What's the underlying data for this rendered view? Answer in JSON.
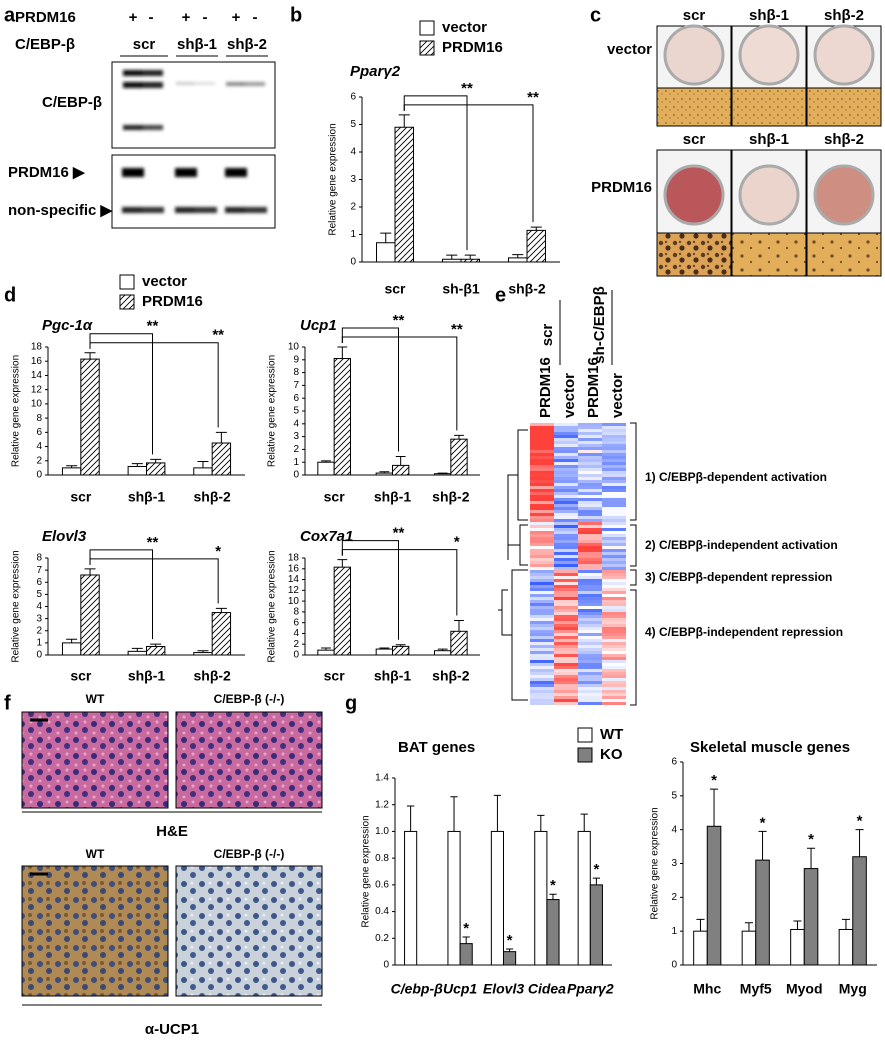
{
  "panel_labels": [
    "a",
    "b",
    "c",
    "d",
    "e",
    "f",
    "g"
  ],
  "blot": {
    "treatment_label": "PRDM16",
    "signs": [
      "+",
      "-",
      "+",
      "-",
      "+",
      "-"
    ],
    "shrna_label": "C/EBP-β",
    "groups": [
      "scr",
      "shβ-1",
      "shβ-2"
    ],
    "rows": [
      "C/EBP-β",
      "PRDM16 ▶",
      "non-specific ▶"
    ]
  },
  "staining": {
    "rows": [
      {
        "label": "vector",
        "columns": [
          "scr",
          "shβ-1",
          "shβ-2"
        ]
      },
      {
        "label": "PRDM16",
        "columns": [
          "scr",
          "shβ-1",
          "shβ-2"
        ]
      }
    ]
  },
  "heatmap": {
    "groups": [
      "scr",
      "sh-C/EBPβ"
    ],
    "columns": [
      "PRDM16",
      "vector",
      "PRDM16",
      "vector"
    ],
    "clusters": [
      "1) C/EBPβ-dependent activation",
      "2) C/EBPβ-independent activation",
      "3) C/EBPβ-dependent repression",
      "4) C/EBPβ-independent repression"
    ]
  },
  "histology": {
    "rows": [
      {
        "columns": [
          "WT",
          "C/EBP-β (-/-)"
        ],
        "stain": "H&E"
      },
      {
        "columns": [
          "WT",
          "C/EBP-β (-/-)"
        ],
        "stain": "α-UCP1"
      }
    ]
  },
  "chart_data": [
    {
      "type": "bar",
      "title": "Pparγ2",
      "ylabel": "Relative gene expression",
      "categories": [
        "scr",
        "sh-β1",
        "shβ-2"
      ],
      "series": [
        {
          "name": "vector",
          "color": "#ffffff",
          "values": [
            0.7,
            0.1,
            0.15
          ],
          "errors": [
            0.35,
            0.15,
            0.12
          ]
        },
        {
          "name": "PRDM16",
          "color": "#ffffff",
          "hatch": true,
          "values": [
            4.9,
            0.1,
            1.15
          ],
          "errors": [
            0.45,
            0.15,
            0.12
          ]
        }
      ],
      "ylim": [
        0,
        6
      ],
      "yticks": [
        0,
        1,
        2,
        3,
        4,
        5,
        6
      ],
      "significance": [
        {
          "from": "scr",
          "to": "sh-β1",
          "text": "**"
        },
        {
          "from": "scr",
          "to": "shβ-2",
          "text": "**"
        }
      ]
    },
    {
      "type": "bar",
      "title": "Pgc-1α",
      "ylabel": "Relative gene expression",
      "categories": [
        "scr",
        "shβ-1",
        "shβ-2"
      ],
      "series": [
        {
          "name": "vector",
          "color": "#ffffff",
          "values": [
            1.0,
            1.2,
            1.0
          ],
          "errors": [
            0.3,
            0.4,
            0.9
          ]
        },
        {
          "name": "PRDM16",
          "color": "#ffffff",
          "hatch": true,
          "values": [
            16.3,
            1.7,
            4.5
          ],
          "errors": [
            0.9,
            0.5,
            1.5
          ]
        }
      ],
      "ylim": [
        0,
        18
      ],
      "yticks": [
        0,
        2,
        4,
        6,
        8,
        10,
        12,
        14,
        16,
        18
      ],
      "significance": [
        {
          "from": "scr",
          "to": "shβ-1",
          "text": "**"
        },
        {
          "from": "scr",
          "to": "shβ-2",
          "text": "**"
        }
      ]
    },
    {
      "type": "bar",
      "title": "Ucp1",
      "ylabel": "Relative gene expression",
      "categories": [
        "scr",
        "shβ-1",
        "shβ-2"
      ],
      "series": [
        {
          "color": "#ffffff",
          "values": [
            1.0,
            0.15,
            0.1
          ],
          "errors": [
            0.1,
            0.1,
            0.05
          ]
        },
        {
          "color": "#ffffff",
          "hatch": true,
          "values": [
            9.1,
            0.75,
            2.8
          ],
          "errors": [
            0.9,
            0.7,
            0.3
          ]
        }
      ],
      "ylim": [
        0,
        10
      ],
      "yticks": [
        0,
        1,
        2,
        3,
        4,
        5,
        6,
        7,
        8,
        9,
        10
      ],
      "significance": [
        {
          "from": "scr",
          "to": "shβ-1",
          "text": "**"
        },
        {
          "from": "scr",
          "to": "shβ-2",
          "text": "**"
        }
      ]
    },
    {
      "type": "bar",
      "title": "Elovl3",
      "ylabel": "Relative gene expression",
      "categories": [
        "scr",
        "shβ-1",
        "shβ-2"
      ],
      "series": [
        {
          "color": "#ffffff",
          "values": [
            1.0,
            0.3,
            0.2
          ],
          "errors": [
            0.3,
            0.25,
            0.15
          ]
        },
        {
          "color": "#ffffff",
          "hatch": true,
          "values": [
            6.6,
            0.7,
            3.5
          ],
          "errors": [
            0.5,
            0.2,
            0.35
          ]
        }
      ],
      "ylim": [
        0,
        8
      ],
      "yticks": [
        0,
        1,
        2,
        3,
        4,
        5,
        6,
        7,
        8
      ],
      "significance": [
        {
          "from": "scr",
          "to": "shβ-1",
          "text": "**"
        },
        {
          "from": "scr",
          "to": "shβ-2",
          "text": "*"
        }
      ]
    },
    {
      "type": "bar",
      "title": "Cox7a1",
      "ylabel": "Relative gene expression",
      "categories": [
        "scr",
        "shβ-1",
        "shβ-2"
      ],
      "series": [
        {
          "color": "#ffffff",
          "values": [
            0.9,
            1.1,
            0.8
          ],
          "errors": [
            0.4,
            0.2,
            0.3
          ]
        },
        {
          "color": "#ffffff",
          "hatch": true,
          "values": [
            16.3,
            1.6,
            4.4
          ],
          "errors": [
            1.4,
            0.3,
            2.0
          ]
        }
      ],
      "ylim": [
        0,
        18
      ],
      "yticks": [
        0,
        2,
        4,
        6,
        8,
        10,
        12,
        14,
        16,
        18
      ],
      "significance": [
        {
          "from": "scr",
          "to": "shβ-1",
          "text": "**"
        },
        {
          "from": "scr",
          "to": "shβ-2",
          "text": "*"
        }
      ]
    },
    {
      "type": "bar",
      "title": "BAT genes",
      "ylabel": "Relative gene expression",
      "categories": [
        "C/ebp-β",
        "Ucp1",
        "Elovl3",
        "Cidea",
        "Pparγ2"
      ],
      "series": [
        {
          "name": "WT",
          "color": "#ffffff",
          "values": [
            1.0,
            1.0,
            1.0,
            1.0,
            1.0
          ],
          "errors": [
            0.19,
            0.26,
            0.27,
            0.12,
            0.13
          ]
        },
        {
          "name": "KO",
          "color": "#808080",
          "values": [
            0,
            0.16,
            0.1,
            0.49,
            0.6
          ],
          "errors": [
            0,
            0.05,
            0.02,
            0.04,
            0.05
          ]
        }
      ],
      "ylim": [
        0,
        1.4
      ],
      "yticks": [
        0,
        0.2,
        0.4,
        0.6,
        0.8,
        {
          "value": 1,
          "label": "1.0"
        },
        1.2,
        1.4
      ],
      "significance": [
        {
          "category": "Ucp1",
          "text": "*"
        },
        {
          "category": "Elovl3",
          "text": "*"
        },
        {
          "category": "Cidea",
          "text": "*"
        },
        {
          "category": "Pparγ2",
          "text": "*"
        }
      ]
    },
    {
      "type": "bar",
      "title": "Skeletal muscle genes",
      "ylabel": "Relative gene expression",
      "categories": [
        "Mhc",
        "Myf5",
        "Myod",
        "Myg"
      ],
      "series": [
        {
          "color": "#ffffff",
          "values": [
            1.0,
            1.0,
            1.05,
            1.05
          ],
          "errors": [
            0.35,
            0.25,
            0.25,
            0.3
          ]
        },
        {
          "color": "#808080",
          "values": [
            4.1,
            3.1,
            2.85,
            3.2
          ],
          "errors": [
            1.1,
            0.85,
            0.6,
            0.8
          ]
        }
      ],
      "ylim": [
        0,
        6
      ],
      "yticks": [
        0,
        1,
        2,
        3,
        4,
        5,
        6
      ],
      "significance": [
        {
          "category": "Mhc",
          "text": "*"
        },
        {
          "category": "Myf5",
          "text": "*"
        },
        {
          "category": "Myod",
          "text": "*"
        },
        {
          "category": "Myg",
          "text": "*"
        }
      ]
    }
  ]
}
